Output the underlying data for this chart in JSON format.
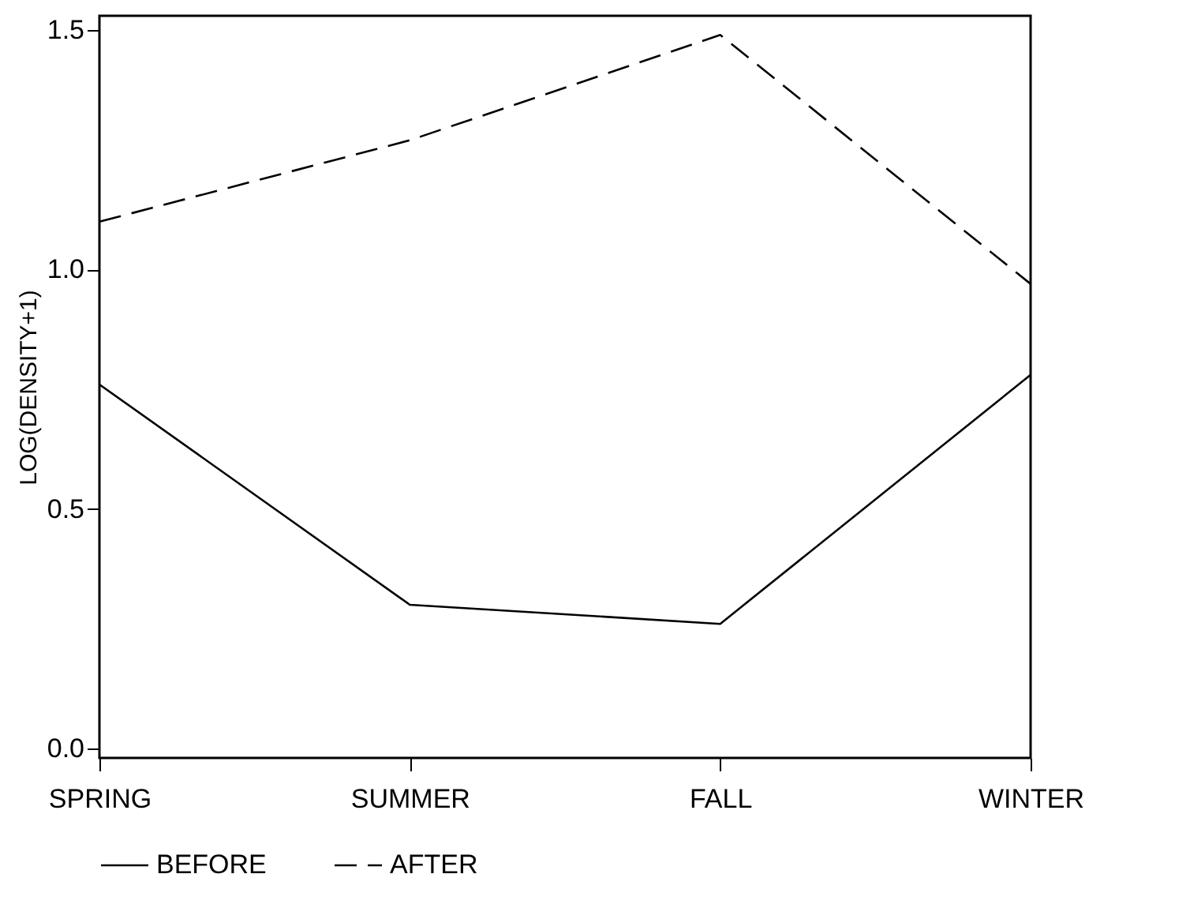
{
  "chart_data": {
    "type": "line",
    "ylabel": "LOG(DENSITY+1)",
    "categories": [
      "SPRING",
      "SUMMER",
      "FALL",
      "WINTER"
    ],
    "series": [
      {
        "name": "BEFORE",
        "color": "#000000",
        "line_style": "solid",
        "values": [
          0.76,
          0.3,
          0.26,
          0.78
        ]
      },
      {
        "name": "AFTER",
        "color": "#000000",
        "line_style": "dashed",
        "values": [
          1.1,
          1.27,
          1.49,
          0.97
        ]
      }
    ],
    "ylim": [
      -0.02,
      1.53
    ],
    "yticks": [
      {
        "value": 0,
        "label": "0.0"
      },
      0.5,
      {
        "value": 1,
        "label": "1.0"
      },
      1.5
    ],
    "grid": false,
    "legend": "bottom"
  }
}
